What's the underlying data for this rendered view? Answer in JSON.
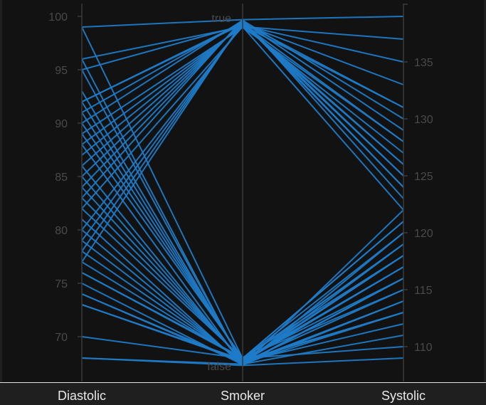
{
  "chart_data": {
    "type": "parallel_coordinates",
    "axes": [
      {
        "name": "Diastolic",
        "kind": "numeric",
        "range": [
          67,
          101
        ],
        "ticks": [
          70,
          75,
          80,
          85,
          90,
          95,
          100
        ]
      },
      {
        "name": "Smoker",
        "kind": "categorical",
        "categories": [
          "true",
          "false"
        ]
      },
      {
        "name": "Systolic",
        "kind": "numeric",
        "range": [
          108,
          140
        ],
        "ticks": [
          110,
          115,
          120,
          125,
          130,
          135
        ]
      }
    ],
    "line_color": "#1f7bc8",
    "rows": [
      {
        "Diastolic": 99,
        "Smoker": "true",
        "Systolic": 139
      },
      {
        "Diastolic": 96,
        "Smoker": "true",
        "Systolic": 137
      },
      {
        "Diastolic": 95,
        "Smoker": "true",
        "Systolic": 135
      },
      {
        "Diastolic": 92,
        "Smoker": "true",
        "Systolic": 133
      },
      {
        "Diastolic": 92,
        "Smoker": "true",
        "Systolic": 131
      },
      {
        "Diastolic": 91,
        "Smoker": "true",
        "Systolic": 129
      },
      {
        "Diastolic": 90,
        "Smoker": "true",
        "Systolic": 130
      },
      {
        "Diastolic": 89,
        "Smoker": "true",
        "Systolic": 128
      },
      {
        "Diastolic": 88,
        "Smoker": "true",
        "Systolic": 127
      },
      {
        "Diastolic": 87,
        "Smoker": "true",
        "Systolic": 126
      },
      {
        "Diastolic": 86,
        "Smoker": "true",
        "Systolic": 125
      },
      {
        "Diastolic": 85,
        "Smoker": "true",
        "Systolic": 124
      },
      {
        "Diastolic": 84,
        "Smoker": "true",
        "Systolic": 124
      },
      {
        "Diastolic": 83,
        "Smoker": "true",
        "Systolic": 123
      },
      {
        "Diastolic": 82,
        "Smoker": "true",
        "Systolic": 122
      },
      {
        "Diastolic": 80,
        "Smoker": "true",
        "Systolic": 131
      },
      {
        "Diastolic": 79,
        "Smoker": "true",
        "Systolic": 128
      },
      {
        "Diastolic": 78,
        "Smoker": "true",
        "Systolic": 126
      },
      {
        "Diastolic": 77,
        "Smoker": "true",
        "Systolic": 125
      },
      {
        "Diastolic": 99,
        "Smoker": "false",
        "Systolic": 121
      },
      {
        "Diastolic": 96,
        "Smoker": "false",
        "Systolic": 120
      },
      {
        "Diastolic": 95,
        "Smoker": "false",
        "Systolic": 119
      },
      {
        "Diastolic": 93,
        "Smoker": "false",
        "Systolic": 118
      },
      {
        "Diastolic": 92,
        "Smoker": "false",
        "Systolic": 118
      },
      {
        "Diastolic": 91,
        "Smoker": "false",
        "Systolic": 117
      },
      {
        "Diastolic": 90,
        "Smoker": "false",
        "Systolic": 116
      },
      {
        "Diastolic": 89,
        "Smoker": "false",
        "Systolic": 115
      },
      {
        "Diastolic": 88,
        "Smoker": "false",
        "Systolic": 114
      },
      {
        "Diastolic": 86,
        "Smoker": "false",
        "Systolic": 113
      },
      {
        "Diastolic": 85,
        "Smoker": "false",
        "Systolic": 115
      },
      {
        "Diastolic": 84,
        "Smoker": "false",
        "Systolic": 117
      },
      {
        "Diastolic": 83,
        "Smoker": "false",
        "Systolic": 119
      },
      {
        "Diastolic": 82,
        "Smoker": "false",
        "Systolic": 121
      },
      {
        "Diastolic": 81,
        "Smoker": "false",
        "Systolic": 122
      },
      {
        "Diastolic": 80,
        "Smoker": "false",
        "Systolic": 116
      },
      {
        "Diastolic": 79,
        "Smoker": "false",
        "Systolic": 114
      },
      {
        "Diastolic": 78,
        "Smoker": "false",
        "Systolic": 112
      },
      {
        "Diastolic": 77,
        "Smoker": "false",
        "Systolic": 113
      },
      {
        "Diastolic": 76,
        "Smoker": "false",
        "Systolic": 120
      },
      {
        "Diastolic": 76,
        "Smoker": "false",
        "Systolic": 118
      },
      {
        "Diastolic": 75,
        "Smoker": "false",
        "Systolic": 116
      },
      {
        "Diastolic": 74,
        "Smoker": "false",
        "Systolic": 114
      },
      {
        "Diastolic": 74,
        "Smoker": "false",
        "Systolic": 117
      },
      {
        "Diastolic": 73,
        "Smoker": "false",
        "Systolic": 113
      },
      {
        "Diastolic": 73,
        "Smoker": "false",
        "Systolic": 119
      },
      {
        "Diastolic": 70,
        "Smoker": "false",
        "Systolic": 110
      },
      {
        "Diastolic": 68,
        "Smoker": "false",
        "Systolic": 109
      },
      {
        "Diastolic": 68,
        "Smoker": "false",
        "Systolic": 111
      }
    ]
  }
}
